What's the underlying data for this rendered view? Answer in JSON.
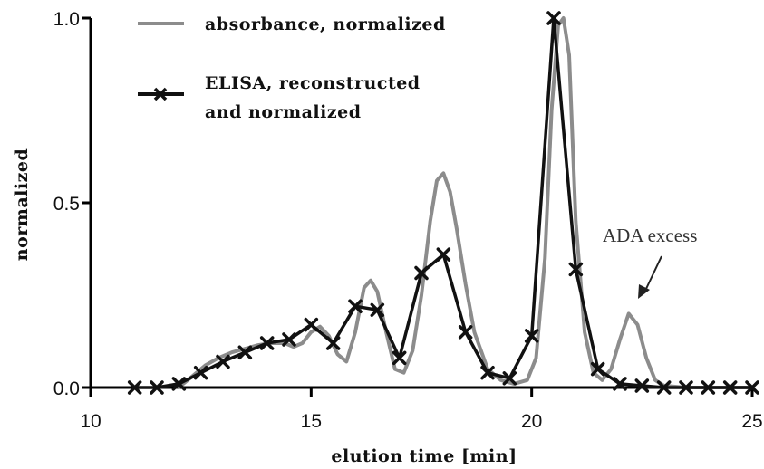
{
  "chart_data": {
    "type": "line",
    "xlabel": "elution time [min]",
    "ylabel": "normalized",
    "xlim": [
      10,
      25
    ],
    "ylim": [
      0,
      1
    ],
    "x_ticks": [
      10,
      15,
      20,
      25
    ],
    "y_ticks": [
      0.0,
      0.5,
      1.0
    ],
    "y_tick_labels": [
      "0.0",
      "0.5",
      "1.0"
    ],
    "grid": false,
    "legend_position": "top-left",
    "legend": [
      "absorbance, normalized",
      [
        "ELISA, reconstructed",
        "and normalized"
      ]
    ],
    "series": [
      {
        "name": "absorbance, normalized",
        "color": "#8c8c8c",
        "marker": "none",
        "x": [
          12.0,
          12.3,
          12.6,
          12.9,
          13.2,
          13.5,
          13.8,
          14.1,
          14.4,
          14.6,
          14.8,
          15.0,
          15.2,
          15.4,
          15.6,
          15.8,
          16.0,
          16.2,
          16.35,
          16.5,
          16.7,
          16.9,
          17.1,
          17.3,
          17.5,
          17.7,
          17.85,
          18.0,
          18.15,
          18.3,
          18.5,
          18.7,
          19.0,
          19.3,
          19.6,
          19.9,
          20.1,
          20.3,
          20.45,
          20.6,
          20.72,
          20.85,
          21.0,
          21.2,
          21.4,
          21.6,
          21.8,
          22.0,
          22.2,
          22.4,
          22.6,
          22.8,
          23.0,
          23.5,
          24.0,
          25.0
        ],
        "y": [
          0.0,
          0.03,
          0.06,
          0.08,
          0.095,
          0.105,
          0.115,
          0.12,
          0.12,
          0.11,
          0.12,
          0.15,
          0.165,
          0.14,
          0.09,
          0.07,
          0.15,
          0.27,
          0.29,
          0.26,
          0.15,
          0.05,
          0.04,
          0.1,
          0.25,
          0.45,
          0.56,
          0.58,
          0.53,
          0.43,
          0.28,
          0.15,
          0.05,
          0.02,
          0.01,
          0.02,
          0.08,
          0.35,
          0.75,
          0.98,
          1.0,
          0.9,
          0.45,
          0.15,
          0.04,
          0.02,
          0.05,
          0.13,
          0.2,
          0.17,
          0.08,
          0.02,
          0.005,
          0.0,
          0.0,
          0.0
        ]
      },
      {
        "name": "ELISA, reconstructed and normalized",
        "color": "#111111",
        "marker": "x",
        "x": [
          11.0,
          11.5,
          12.0,
          12.5,
          13.0,
          13.5,
          14.0,
          14.5,
          15.0,
          15.5,
          16.0,
          16.5,
          17.0,
          17.5,
          18.0,
          18.5,
          19.0,
          19.5,
          20.0,
          20.5,
          21.0,
          21.5,
          22.0,
          22.5,
          23.0,
          23.5,
          24.0,
          24.5,
          25.0
        ],
        "y": [
          0.0,
          0.0,
          0.01,
          0.04,
          0.07,
          0.095,
          0.12,
          0.13,
          0.17,
          0.12,
          0.22,
          0.21,
          0.08,
          0.31,
          0.36,
          0.15,
          0.04,
          0.025,
          0.14,
          1.0,
          0.32,
          0.05,
          0.01,
          0.005,
          0.0,
          0.0,
          0.0,
          0.0,
          0.0
        ]
      }
    ],
    "annotations": [
      {
        "text": "ADA excess",
        "x": 22.2,
        "y": 0.2
      }
    ]
  }
}
